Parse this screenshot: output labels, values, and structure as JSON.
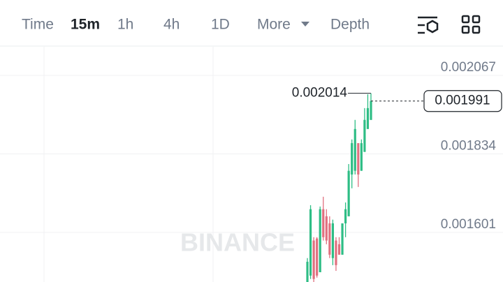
{
  "toolbar": {
    "tabs": [
      "Time",
      "15m",
      "1h",
      "4h",
      "1D",
      "More",
      "Depth"
    ],
    "active": 1
  },
  "chart_data": {
    "type": "candlestick",
    "watermark": "BINANCE",
    "open": [
      0.001454,
      0.001473,
      0.001577,
      0.001583,
      0.001483,
      0.00167,
      0.001649,
      0.001628,
      0.001525,
      0.001577,
      0.001566,
      0.001535,
      0.001628,
      0.001649,
      0.001773,
      0.001784,
      0.001866,
      0.001784,
      0.00184,
      0.001908,
      0.001935
    ],
    "high": [
      0.001525,
      0.001682,
      0.001587,
      0.001587,
      0.001678,
      0.001707,
      0.00167,
      0.001649,
      0.001639,
      0.001587,
      0.001587,
      0.001628,
      0.00169,
      0.001804,
      0.001877,
      0.001935,
      0.001866,
      0.001877,
      0.00197,
      0.002011,
      0.002014
    ],
    "low": [
      0.001454,
      0.001463,
      0.001454,
      0.001467,
      0.001483,
      0.001577,
      0.001566,
      0.001525,
      0.001504,
      0.001487,
      0.001535,
      0.001535,
      0.001587,
      0.001649,
      0.001732,
      0.001773,
      0.001736,
      0.001784,
      0.00184,
      0.001908,
      0.001935
    ],
    "close": [
      0.001514,
      0.00167,
      0.001463,
      0.001473,
      0.00167,
      0.001587,
      0.001577,
      0.001535,
      0.001628,
      0.001504,
      0.001535,
      0.001628,
      0.00167,
      0.001784,
      0.001866,
      0.001908,
      0.001773,
      0.001866,
      0.001935,
      0.00197,
      0.001991
    ],
    "up_color": "#2ebd85",
    "down_color": "#e0707f",
    "ylim": [
      0.001454,
      0.002152
    ],
    "yticks": [
      0.001601,
      0.001834,
      0.002067
    ],
    "grid": true
  }
}
